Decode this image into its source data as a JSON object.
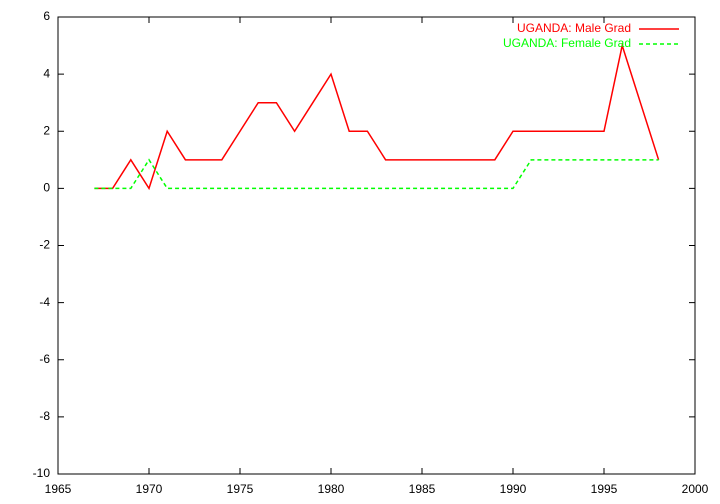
{
  "chart_data": {
    "type": "line",
    "x": [
      1967,
      1968,
      1969,
      1970,
      1971,
      1972,
      1973,
      1974,
      1975,
      1976,
      1977,
      1978,
      1979,
      1980,
      1981,
      1982,
      1983,
      1984,
      1985,
      1986,
      1987,
      1988,
      1989,
      1990,
      1991,
      1992,
      1993,
      1994,
      1995,
      1996,
      1997,
      1998
    ],
    "series": [
      {
        "name": "UGANDA: Male Grad",
        "color": "#ff0000",
        "dash": false,
        "values": [
          0,
          0,
          1,
          0,
          2,
          1,
          1,
          1,
          2,
          3,
          3,
          2,
          3,
          4,
          2,
          2,
          1,
          1,
          1,
          1,
          1,
          1,
          1,
          2,
          2,
          2,
          2,
          2,
          2,
          5,
          3,
          1
        ]
      },
      {
        "name": "UGANDA: Female Grad",
        "color": "#00ff00",
        "dash": true,
        "values": [
          0,
          0,
          0,
          1,
          0,
          0,
          0,
          0,
          0,
          0,
          0,
          0,
          0,
          0,
          0,
          0,
          0,
          0,
          0,
          0,
          0,
          0,
          0,
          0,
          1,
          1,
          1,
          1,
          1,
          1,
          1,
          1
        ]
      }
    ],
    "xlim": [
      1965,
      2000
    ],
    "xticks": [
      1965,
      1970,
      1975,
      1980,
      1985,
      1990,
      1995,
      2000
    ],
    "ylim": [
      -10,
      6
    ],
    "yticks": [
      -10,
      -8,
      -6,
      -4,
      -2,
      0,
      2,
      4,
      6
    ],
    "legend": "top-right"
  }
}
